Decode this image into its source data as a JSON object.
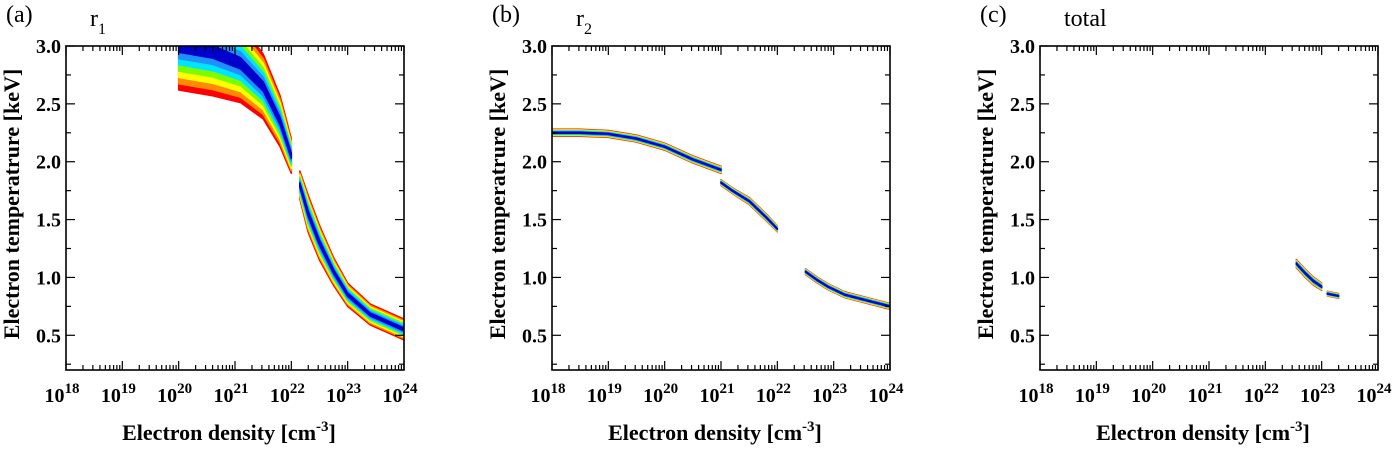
{
  "chart_data": [
    {
      "type": "heatmap",
      "panel_label": "(a)",
      "name_base": "r",
      "name_sub": "1",
      "xlabel_base": "Electron density [cm",
      "xlabel_sup": "-3",
      "xlabel_end": "]",
      "ylabel": "Electron temperatrure [keV]",
      "x_scale": "log",
      "xlim": [
        1e+18,
        1e+24
      ],
      "ylim": [
        0.2,
        3.0
      ],
      "x_tick_labels": [
        {
          "base": "10",
          "exp": "18"
        },
        {
          "base": "10",
          "exp": "19"
        },
        {
          "base": "10",
          "exp": "20"
        },
        {
          "base": "10",
          "exp": "21"
        },
        {
          "base": "10",
          "exp": "22"
        },
        {
          "base": "10",
          "exp": "23"
        },
        {
          "base": "10",
          "exp": "24"
        }
      ],
      "y_tick_labels": [
        "0.5",
        "1.0",
        "1.5",
        "2.0",
        "2.5",
        "3.0"
      ],
      "grid": false,
      "colormap": [
        "#0000cd",
        "#1e90ff",
        "#00e5ff",
        "#7cfc00",
        "#ffff00",
        "#ff8c00",
        "#ff0000"
      ],
      "bands": [
        {
          "ridge": [
            [
              20.0,
              3.0
            ],
            [
              20.6,
              2.95
            ],
            [
              21.1,
              2.85
            ],
            [
              21.5,
              2.65
            ],
            [
              21.8,
              2.35
            ],
            [
              22.0,
              2.05
            ]
          ],
          "half_width": [
            0.38,
            0.38,
            0.34,
            0.28,
            0.22,
            0.15
          ]
        },
        {
          "ridge": [
            [
              22.15,
              1.8
            ],
            [
              22.3,
              1.55
            ],
            [
              22.5,
              1.3
            ],
            [
              22.75,
              1.05
            ],
            [
              23.0,
              0.85
            ],
            [
              23.4,
              0.68
            ],
            [
              24.0,
              0.55
            ]
          ],
          "half_width": [
            0.12,
            0.16,
            0.15,
            0.12,
            0.1,
            0.09,
            0.09
          ]
        }
      ]
    },
    {
      "type": "heatmap",
      "panel_label": "(b)",
      "name_base": "r",
      "name_sub": "2",
      "xlabel_base": "Electron density [cm",
      "xlabel_sup": "-3",
      "xlabel_end": "]",
      "ylabel": "Electron temperatrure [keV]",
      "x_scale": "log",
      "xlim": [
        1e+18,
        1e+24
      ],
      "ylim": [
        0.2,
        3.0
      ],
      "x_tick_labels": [
        {
          "base": "10",
          "exp": "18"
        },
        {
          "base": "10",
          "exp": "19"
        },
        {
          "base": "10",
          "exp": "20"
        },
        {
          "base": "10",
          "exp": "21"
        },
        {
          "base": "10",
          "exp": "22"
        },
        {
          "base": "10",
          "exp": "23"
        },
        {
          "base": "10",
          "exp": "24"
        }
      ],
      "y_tick_labels": [
        "0.5",
        "1.0",
        "1.5",
        "2.0",
        "2.5",
        "3.0"
      ],
      "grid": false,
      "colormap": [
        "#0000cd",
        "#1e90ff",
        "#00e5ff",
        "#7cfc00",
        "#ffff00",
        "#ff8c00",
        "#ff0000"
      ],
      "bands": [
        {
          "ridge": [
            [
              18.0,
              2.25
            ],
            [
              18.5,
              2.25
            ],
            [
              19.0,
              2.24
            ],
            [
              19.5,
              2.2
            ],
            [
              20.0,
              2.13
            ],
            [
              20.5,
              2.02
            ],
            [
              21.0,
              1.93
            ]
          ],
          "half_width": [
            0.03,
            0.03,
            0.03,
            0.03,
            0.03,
            0.03,
            0.03
          ]
        },
        {
          "ridge": [
            [
              21.0,
              1.82
            ],
            [
              21.2,
              1.75
            ],
            [
              21.5,
              1.66
            ],
            [
              21.8,
              1.52
            ],
            [
              22.0,
              1.42
            ]
          ],
          "half_width": [
            0.025,
            0.025,
            0.03,
            0.03,
            0.025
          ]
        },
        {
          "ridge": [
            [
              22.5,
              1.05
            ],
            [
              22.7,
              0.98
            ],
            [
              22.9,
              0.92
            ],
            [
              23.2,
              0.85
            ],
            [
              23.6,
              0.8
            ],
            [
              24.0,
              0.75
            ]
          ],
          "half_width": [
            0.025,
            0.025,
            0.025,
            0.025,
            0.025,
            0.025
          ]
        }
      ]
    },
    {
      "type": "heatmap",
      "panel_label": "(c)",
      "name_base": "total",
      "name_sub": "",
      "xlabel_base": "Electron density [cm",
      "xlabel_sup": "-3",
      "xlabel_end": "]",
      "ylabel": "Electron temperatrure [keV]",
      "x_scale": "log",
      "xlim": [
        1e+18,
        1e+24
      ],
      "ylim": [
        0.2,
        3.0
      ],
      "x_tick_labels": [
        {
          "base": "10",
          "exp": "18"
        },
        {
          "base": "10",
          "exp": "19"
        },
        {
          "base": "10",
          "exp": "20"
        },
        {
          "base": "10",
          "exp": "21"
        },
        {
          "base": "10",
          "exp": "22"
        },
        {
          "base": "10",
          "exp": "23"
        },
        {
          "base": "10",
          "exp": "24"
        }
      ],
      "y_tick_labels": [
        "0.5",
        "1.0",
        "1.5",
        "2.0",
        "2.5",
        "3.0"
      ],
      "grid": false,
      "colormap": [
        "#0000cd",
        "#1e90ff",
        "#00e5ff",
        "#7cfc00",
        "#ffff00",
        "#ff8c00",
        "#ff0000"
      ],
      "bands": [
        {
          "ridge": [
            [
              22.55,
              1.12
            ],
            [
              22.7,
              1.04
            ],
            [
              22.85,
              0.97
            ],
            [
              23.0,
              0.92
            ]
          ],
          "half_width": [
            0.035,
            0.035,
            0.035,
            0.03
          ]
        },
        {
          "ridge": [
            [
              23.1,
              0.86
            ],
            [
              23.3,
              0.84
            ]
          ],
          "half_width": [
            0.02,
            0.02
          ]
        }
      ]
    }
  ]
}
